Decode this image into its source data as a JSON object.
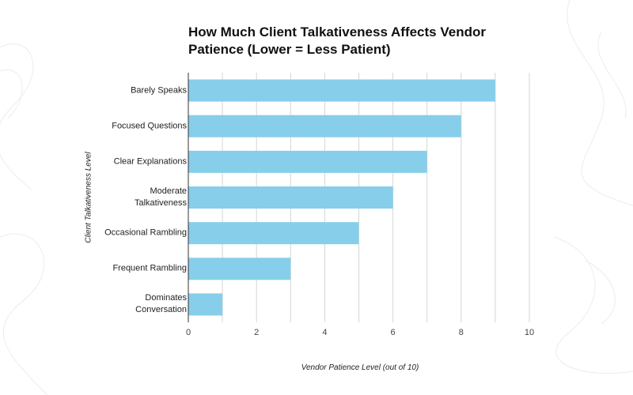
{
  "chart_data": {
    "type": "bar",
    "orientation": "horizontal",
    "title": "How Much Client Talkativeness Affects Vendor Patience (Lower = Less Patient)",
    "xlabel": "Vendor Patience Level (out of 10)",
    "ylabel": "Client Talkativeness Level",
    "categories": [
      "Barely Speaks",
      "Focused Questions",
      "Clear Explanations",
      "Moderate Talkativeness",
      "Occasional Rambling",
      "Frequent Rambling",
      "Dominates Conversation"
    ],
    "values": [
      9,
      8,
      7,
      6,
      5,
      3,
      1
    ],
    "xlim": [
      0,
      10
    ],
    "xticks": [
      "0",
      "2",
      "4",
      "6",
      "8",
      "10"
    ],
    "grid": true,
    "bar_color": "#87CEEB"
  }
}
